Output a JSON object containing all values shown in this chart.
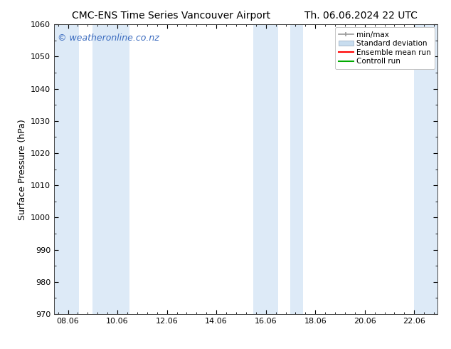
{
  "title_left": "CMC-ENS Time Series Vancouver Airport",
  "title_right": "Th. 06.06.2024 22 UTC",
  "ylabel": "Surface Pressure (hPa)",
  "xlim_min": 7.5,
  "xlim_max": 23.0,
  "ylim_min": 970,
  "ylim_max": 1060,
  "yticks": [
    970,
    980,
    990,
    1000,
    1010,
    1020,
    1030,
    1040,
    1050,
    1060
  ],
  "xtick_positions": [
    8.06,
    10.06,
    12.06,
    14.06,
    16.06,
    18.06,
    20.06,
    22.06
  ],
  "xtick_labels": [
    "08.06",
    "10.06",
    "12.06",
    "14.06",
    "16.06",
    "18.06",
    "20.06",
    "22.06"
  ],
  "shaded_bands": [
    {
      "x_start": 7.5,
      "x_end": 8.5
    },
    {
      "x_start": 9.06,
      "x_end": 10.56
    },
    {
      "x_start": 15.56,
      "x_end": 16.56
    },
    {
      "x_start": 17.06,
      "x_end": 17.56
    },
    {
      "x_start": 22.06,
      "x_end": 23.0
    }
  ],
  "band_color": "#ddeaf7",
  "watermark_text": "© weatheronline.co.nz",
  "watermark_color": "#3a6bbf",
  "watermark_fontsize": 9,
  "legend_labels": [
    "min/max",
    "Standard deviation",
    "Ensemble mean run",
    "Controll run"
  ],
  "legend_colors_minmax": "#999999",
  "legend_color_std": "#c8ddef",
  "legend_color_ens": "#ff0000",
  "legend_color_ctrl": "#00aa00",
  "bg_color": "#ffffff",
  "plot_bg_color": "#ffffff",
  "title_fontsize": 10,
  "tick_fontsize": 8,
  "ylabel_fontsize": 9,
  "legend_fontsize": 7.5,
  "minor_tick_count": 4
}
